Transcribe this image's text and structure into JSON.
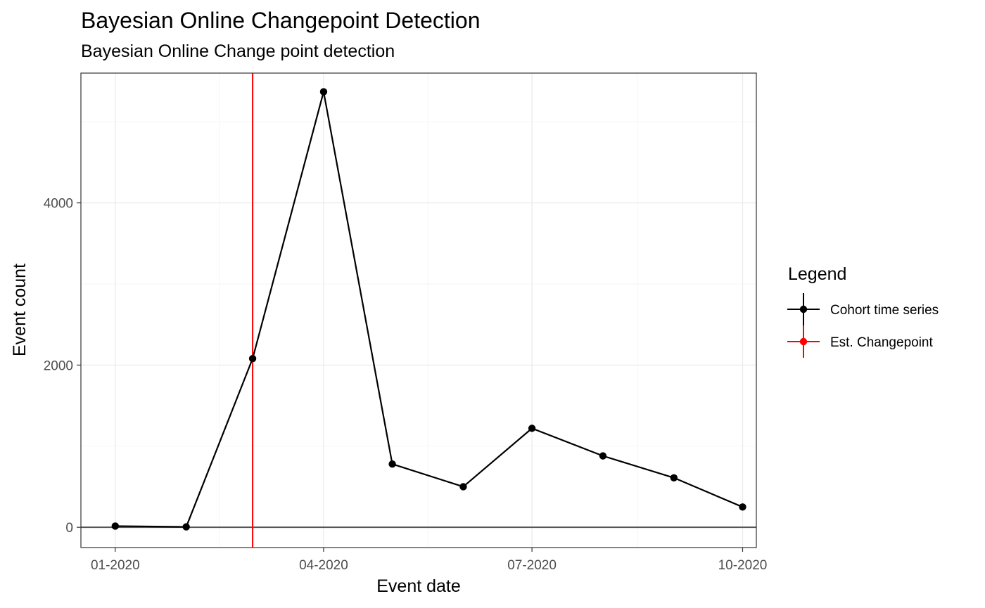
{
  "chart_data": {
    "type": "line",
    "title": "Bayesian Online Changepoint Detection",
    "subtitle": "Bayesian Online Change point detection",
    "xlabel": "Event date",
    "ylabel": "Event count",
    "x_tick_labels": [
      "01-2020",
      "04-2020",
      "07-2020",
      "10-2020"
    ],
    "x_tick_dates": [
      "2020-01-01",
      "2020-04-01",
      "2020-07-01",
      "2020-10-01"
    ],
    "y_ticks": [
      0,
      2000,
      4000
    ],
    "y_tick_labels": [
      "0",
      "2000",
      "4000"
    ],
    "xlim": [
      "2019-12-17",
      "2020-10-07"
    ],
    "ylim": [
      -250,
      5600
    ],
    "grid": true,
    "legend": {
      "title": "Legend",
      "position": "right",
      "entries": [
        {
          "label": "Cohort time series",
          "color": "#000000"
        },
        {
          "label": "Est. Changepoint",
          "color": "#ff0000"
        }
      ]
    },
    "series": [
      {
        "name": "Cohort time series",
        "color": "#000000",
        "x": [
          "2020-01-01",
          "2020-02-01",
          "2020-03-01",
          "2020-04-01",
          "2020-05-01",
          "2020-06-01",
          "2020-07-01",
          "2020-08-01",
          "2020-09-01",
          "2020-10-01"
        ],
        "y": [
          15,
          5,
          2080,
          5370,
          780,
          500,
          1220,
          880,
          610,
          250
        ]
      }
    ],
    "changepoint": {
      "name": "Est. Changepoint",
      "x": "2020-03-01",
      "color": "#ff0000"
    },
    "hline": {
      "y": 0,
      "color": "#555555"
    }
  }
}
